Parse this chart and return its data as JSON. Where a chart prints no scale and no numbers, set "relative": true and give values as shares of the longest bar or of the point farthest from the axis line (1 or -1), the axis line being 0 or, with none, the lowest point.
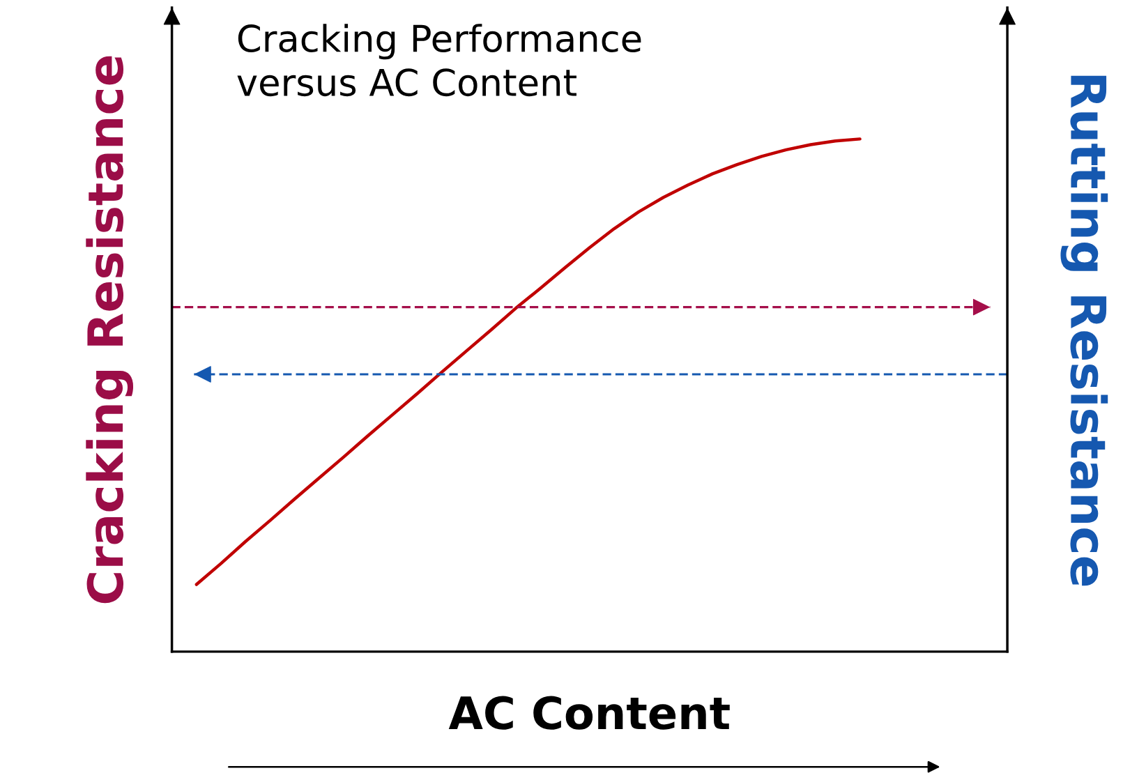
{
  "chart_data": {
    "type": "line",
    "relative": true,
    "xlabel": "AC Content",
    "ylabel": "Cracking Resistance",
    "y2label": "Rutting Resistance",
    "annotations": [
      "Cracking Performance\nversus AC Content"
    ],
    "categories": [
      null,
      null,
      null,
      null,
      null,
      null,
      null,
      null,
      null,
      null,
      null,
      null,
      null,
      null,
      null,
      null,
      null,
      null,
      null,
      null,
      null,
      null,
      null,
      null,
      null,
      null,
      null,
      null,
      null,
      null,
      null,
      null,
      null,
      null,
      null
    ],
    "series": [
      {
        "color": "#c00000",
        "values": [
          null,
          0.131,
          0.172,
          0.215,
          0.256,
          0.298,
          0.339,
          0.38,
          0.422,
          0.463,
          0.504,
          0.546,
          0.587,
          0.628,
          0.67,
          0.709,
          0.749,
          0.788,
          0.825,
          0.858,
          0.886,
          0.91,
          0.932,
          0.95,
          0.966,
          0.979,
          0.989,
          0.996,
          1,
          null,
          null,
          null,
          null,
          null,
          null
        ]
      }
    ],
    "ref_lines": [
      {
        "axis": "y",
        "value": 0.672,
        "color": "#a50f4a",
        "line_style": "dashed"
      },
      {
        "axis": "y",
        "value": 0.541,
        "color": "#1558b0",
        "line_style": "dashed"
      }
    ],
    "legend": false
  }
}
